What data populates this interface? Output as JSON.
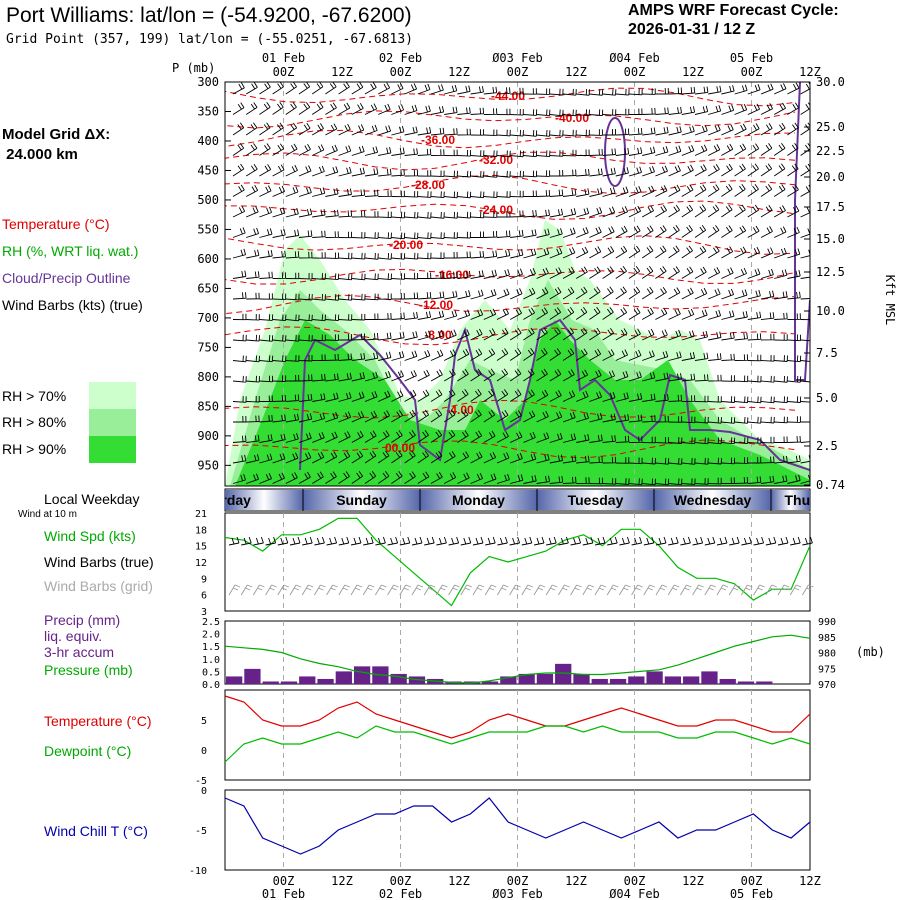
{
  "header": {
    "title": "Port Williams:  lat/lon = (-54.9200, -67.6200)",
    "subtitle": "Grid Point (357, 199) lat/lon = (-55.0251, -67.6813)",
    "cycle_line1": "AMPS WRF Forecast Cycle:",
    "cycle_line2": "2026-01-31 / 12  Z"
  },
  "legend": {
    "model_grid_line1": "Model Grid ΔX:",
    "model_grid_line2": " 24.000 km",
    "temperature": "Temperature (°C)",
    "rh": "RH (%, WRT liq. wat.)",
    "cloud": "Cloud/Precip Outline",
    "wind": "Wind Barbs (kts) (true)",
    "rh70": "RH > 70%",
    "rh80": "RH > 80%",
    "rh90": "RH > 90%",
    "local_weekday": "Local Weekday",
    "wind_at_10m": "Wind at 10 m",
    "wind_spd": "Wind Spd (kts)",
    "wind_barbs_true": "Wind Barbs (true)",
    "wind_barbs_grid": "Wind Barbs (grid)",
    "precip1": "Precip (mm)",
    "precip2": "liq. equiv.",
    "precip3": "3-hr accum",
    "pressure": "Pressure (mb)",
    "temp2": "Temperature (°C)",
    "dewpoint": "Dewpoint (°C)",
    "windchill": "Wind Chill T (°C)"
  },
  "colors": {
    "temp": "#e00000",
    "rh70": "#ccffcc",
    "rh80": "#99ee99",
    "rh90": "#33dd33",
    "cloud": "#663399",
    "wind": "#000000",
    "grid_barb": "#999999",
    "speed": "#00bb00",
    "precip": "#662288",
    "pressure": "#00aa00",
    "dewpoint": "#00bb00",
    "windchill": "#0000aa"
  },
  "chart_data": {
    "type": "meteogram",
    "time_axis": {
      "top_labels_date": [
        "01 Feb",
        "02 Feb",
        "Ø03 Feb",
        "Ø04 Feb",
        "05 Feb"
      ],
      "tick_labels": [
        "00Z",
        "12Z",
        "00Z",
        "12Z",
        "00Z",
        "12Z",
        "00Z",
        "12Z",
        "00Z",
        "12Z"
      ],
      "bottom_labels_date": [
        "01 Feb",
        "02 Feb",
        "Ø03 Feb",
        "Ø04 Feb",
        "05 Feb"
      ],
      "hours_range": [
        -12,
        108
      ]
    },
    "upper_air": {
      "p_label": "P (mb)",
      "pressure_levels": [
        "300",
        "350",
        "400",
        "450",
        "500",
        "550",
        "600",
        "650",
        "700",
        "750",
        "800",
        "850",
        "900",
        "950"
      ],
      "height_label": "Kft MSL",
      "height_ticks": [
        "30.0",
        "25.0",
        "22.5",
        "20.0",
        "17.5",
        "15.0",
        "12.5",
        "10.0",
        "7.5",
        "5.0",
        "2.5",
        "0.74"
      ],
      "temperature_contours": [
        "-44.00",
        "-40.00",
        "-36.00",
        "-32.00",
        "-28.00",
        "-24.00",
        "-20.00",
        "-16.00",
        "-12.00",
        "-8.00",
        "-4.00",
        "00.00"
      ]
    },
    "weekday_bar": [
      "Saturday",
      "Sunday",
      "Monday",
      "Tuesday",
      "Wednesday",
      "Thursday"
    ],
    "wind_speed": {
      "ylim": [
        3,
        21
      ],
      "yticks": [
        "21",
        "18",
        "15",
        "12",
        "9",
        "6",
        "3"
      ],
      "values": [
        16.5,
        16,
        14,
        17,
        17,
        18,
        20,
        20,
        16,
        13,
        10,
        7,
        4,
        10,
        13,
        12,
        13,
        14,
        16,
        17,
        15,
        18,
        18,
        15,
        11,
        9,
        9,
        8,
        5,
        7,
        7,
        15
      ]
    },
    "precip": {
      "ylim": [
        0,
        2.5
      ],
      "yticks": [
        "2.5",
        "2.0",
        "1.5",
        "1.0",
        "0.5",
        "0.0"
      ],
      "values": [
        0.3,
        0.6,
        0.1,
        0.1,
        0.3,
        0.2,
        0.5,
        0.7,
        0.7,
        0.4,
        0.3,
        0.2,
        0.1,
        0.1,
        0.1,
        0.3,
        0.4,
        0.4,
        0.8,
        0.4,
        0.2,
        0.2,
        0.3,
        0.5,
        0.3,
        0.3,
        0.5,
        0.2,
        0.1,
        0.1,
        0.0,
        0.0
      ]
    },
    "pressure": {
      "ylim": [
        970,
        990
      ],
      "yticks": [
        "990",
        "985",
        "980",
        "975",
        "970"
      ],
      "unit_label": "(mb)",
      "values": [
        982,
        981.5,
        981,
        980,
        978,
        976.5,
        975.5,
        974,
        973,
        972.5,
        971.5,
        971,
        970.5,
        970.3,
        971,
        972,
        973,
        973.5,
        973.5,
        973,
        973,
        973.5,
        974,
        974.5,
        976,
        978,
        980,
        982,
        983.5,
        985,
        985.5,
        984.5
      ]
    },
    "temperature": {
      "ylim": [
        -5,
        10
      ],
      "yticks": [
        "5",
        "0",
        "-5"
      ],
      "values": [
        9,
        8,
        5,
        4,
        4,
        5,
        7,
        8,
        6,
        5,
        4,
        3,
        2,
        3,
        5,
        6,
        5,
        4,
        4,
        5,
        6,
        7,
        6,
        5,
        4,
        4,
        5,
        5,
        4,
        3,
        3,
        6
      ]
    },
    "dewpoint": {
      "values": [
        -2,
        1,
        2,
        1,
        1,
        2,
        3,
        2,
        4,
        3,
        3,
        2,
        1,
        2,
        3,
        3,
        3,
        4,
        4,
        3,
        4,
        3,
        3,
        3,
        2,
        2,
        3,
        3,
        2,
        1,
        2,
        1
      ]
    },
    "windchill": {
      "ylim": [
        -10,
        0
      ],
      "yticks": [
        "0",
        "-5",
        "-10"
      ],
      "values": [
        -1,
        -2,
        -6,
        -7,
        -8,
        -7,
        -5,
        -4,
        -3,
        -3,
        -2,
        -2,
        -4,
        -3,
        -1,
        -4,
        -5,
        -6,
        -5,
        -4,
        -5,
        -6,
        -5,
        -4,
        -6,
        -5,
        -5,
        -4,
        -3,
        -5,
        -6,
        -4
      ]
    }
  }
}
